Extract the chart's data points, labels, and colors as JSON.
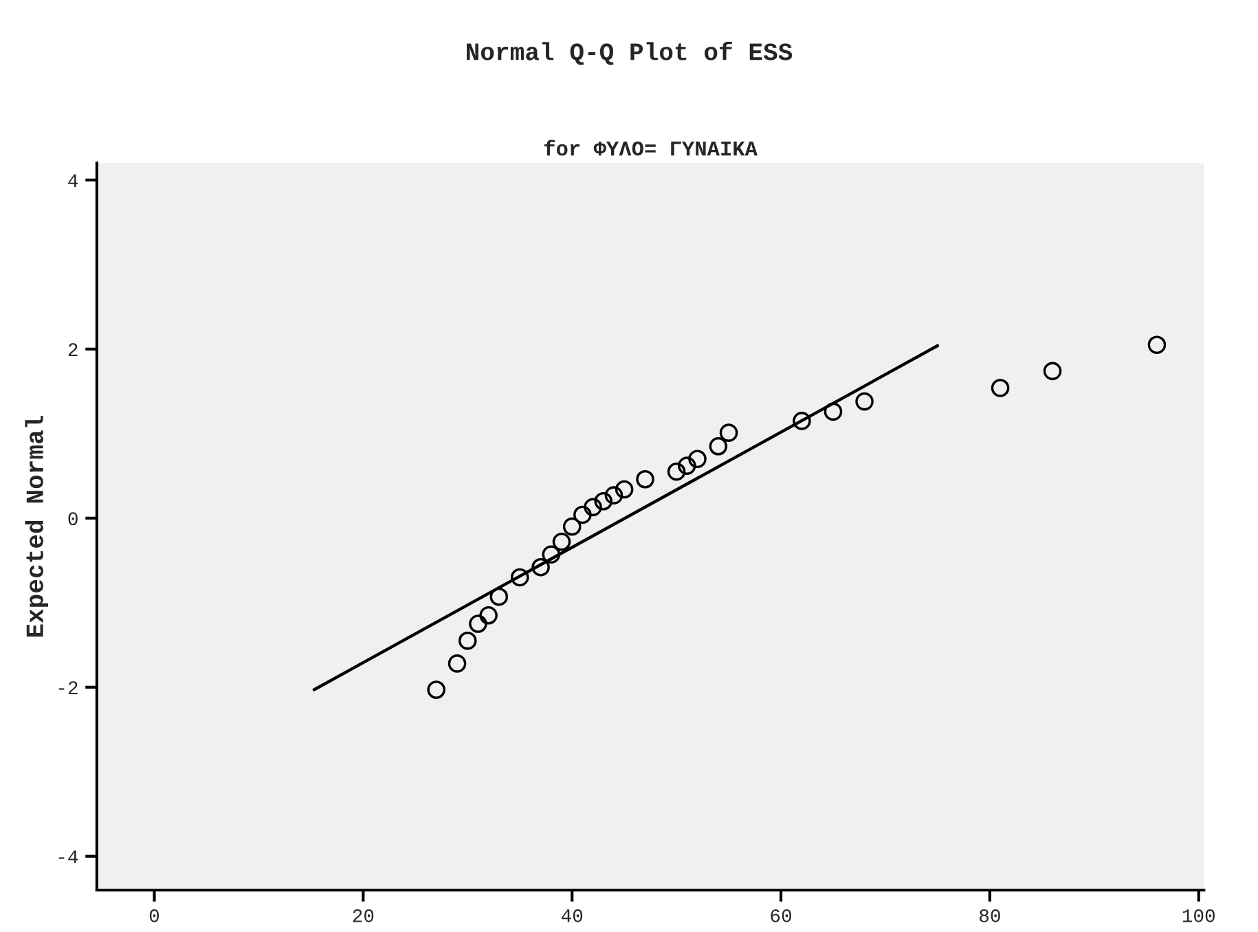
{
  "chart_data": {
    "type": "scatter",
    "title": "Normal Q-Q Plot of ESS",
    "subtitle": "for ΦΥΛΟ= ΓΥΝΑΙΚΑ",
    "ylabel": "Expected Normal",
    "xlim": [
      -5.5,
      100.5
    ],
    "xticks": [
      0,
      20,
      40,
      60,
      80,
      100
    ],
    "ylim": [
      -4.4,
      4.2
    ],
    "yticks": [
      -4,
      -2,
      0,
      2,
      4
    ],
    "grid": false,
    "legend": false,
    "series": [
      {
        "marker": "circle",
        "color": "#000000",
        "x": [
          27,
          29,
          30,
          31,
          32,
          33,
          35,
          37,
          38,
          39,
          40,
          41,
          42,
          43,
          44,
          45,
          47,
          50,
          51,
          52,
          54,
          55,
          62,
          65,
          68,
          81,
          86,
          96
        ],
        "values": [
          -2.03,
          -1.72,
          -1.45,
          -1.25,
          -1.15,
          -0.93,
          -0.7,
          -0.58,
          -0.43,
          -0.28,
          -0.1,
          0.04,
          0.13,
          0.2,
          0.27,
          0.34,
          0.46,
          0.55,
          0.62,
          0.7,
          0.85,
          1.01,
          1.15,
          1.26,
          1.38,
          1.54,
          1.74,
          2.05
        ]
      },
      {
        "type": "line",
        "color": "#000000",
        "x": [
          15.3,
          75
        ],
        "values": [
          -2.03,
          2.04
        ]
      }
    ]
  }
}
